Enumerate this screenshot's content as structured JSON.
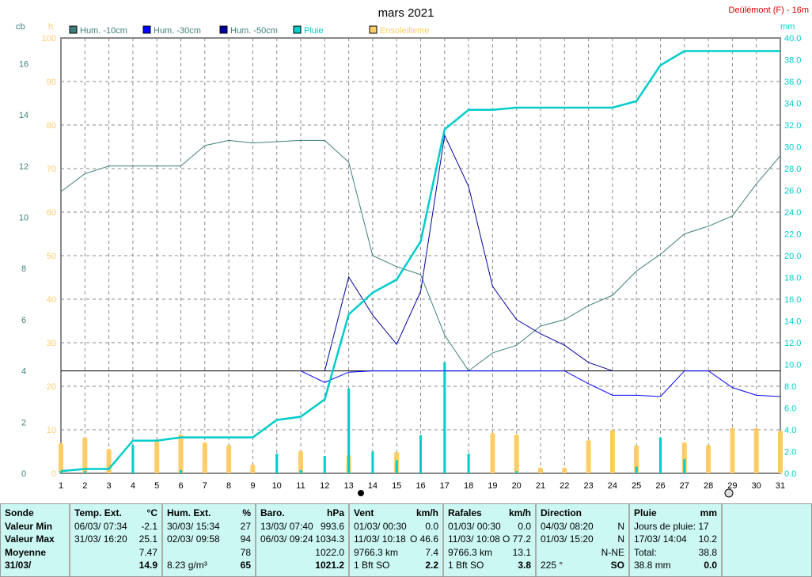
{
  "chart_data": {
    "type": "line",
    "title": "mars 2021",
    "station": "Deülémont (F) - 16m",
    "left_axis_label": "cb",
    "left_axis2_label": "h",
    "right_axis_label": "mm",
    "ylim_cb": [
      0,
      17
    ],
    "ylim_h": [
      0,
      100
    ],
    "ylim_mm": [
      0,
      40
    ],
    "cb_ticks": [
      0,
      2,
      4,
      6,
      8,
      10,
      12,
      14,
      16
    ],
    "h_ticks": [
      0,
      10,
      20,
      30,
      40,
      50,
      60,
      70,
      80,
      90,
      100
    ],
    "mm_ticks": [
      "0.0",
      "2.0",
      "4.0",
      "6.0",
      "8.0",
      "10.0",
      "12.0",
      "14.0",
      "16.0",
      "18.0",
      "20.0",
      "22.0",
      "24.0",
      "26.0",
      "28.0",
      "30.0",
      "32.0",
      "34.0",
      "36.0",
      "38.0",
      "40.0"
    ],
    "x": [
      1,
      2,
      3,
      4,
      5,
      6,
      7,
      8,
      9,
      10,
      11,
      12,
      13,
      14,
      15,
      16,
      17,
      18,
      19,
      20,
      21,
      22,
      23,
      24,
      25,
      26,
      27,
      28,
      29,
      30,
      31
    ],
    "threshold_cb": 4,
    "series": [
      {
        "name": "Hum. -10cm",
        "color": "#3f7f7f",
        "axis": "cb",
        "values": [
          11.0,
          11.7,
          12.0,
          12.0,
          12.0,
          12.0,
          12.8,
          13.0,
          12.9,
          12.95,
          13.0,
          13.0,
          12.15,
          8.5,
          8.07,
          7.76,
          5.4,
          4.0,
          4.7,
          5.0,
          5.75,
          6.0,
          6.55,
          6.95,
          7.9,
          8.55,
          9.35,
          9.65,
          10.05,
          11.3,
          12.4
        ]
      },
      {
        "name": "Hum. -30cm",
        "color": "#0000ff",
        "axis": "cb",
        "values": [
          null,
          null,
          null,
          null,
          null,
          null,
          null,
          null,
          null,
          null,
          4.0,
          3.55,
          3.95,
          4.0,
          4.0,
          4.0,
          4.0,
          4.0,
          4.0,
          4.0,
          4.0,
          4.0,
          3.5,
          3.05,
          3.05,
          3.0,
          4.0,
          4.0,
          3.35,
          3.05,
          3.0
        ]
      },
      {
        "name": "Hum. -50cm",
        "color": "#00009f",
        "axis": "cb",
        "values": [
          null,
          null,
          null,
          null,
          null,
          null,
          null,
          null,
          null,
          null,
          null,
          4.0,
          7.67,
          6.18,
          5.04,
          7.1,
          13.2,
          11.2,
          7.3,
          6.0,
          5.45,
          5.0,
          4.33,
          4.0,
          null,
          null,
          null,
          null,
          null,
          null,
          null
        ]
      },
      {
        "name": "Pluie",
        "color": "#00cccc",
        "axis": "mm",
        "values": [
          0.2,
          0.4,
          0.4,
          3.0,
          3.0,
          3.3,
          3.3,
          3.3,
          3.3,
          4.9,
          5.2,
          6.8,
          14.6,
          16.6,
          17.8,
          21.3,
          31.6,
          33.4,
          33.4,
          33.6,
          33.6,
          33.6,
          33.6,
          33.6,
          34.2,
          37.5,
          38.8,
          38.8,
          38.8,
          38.8,
          38.8
        ],
        "daily": [
          0.2,
          0.2,
          0,
          2.6,
          0,
          0.3,
          0,
          0,
          0,
          1.8,
          0.3,
          1.6,
          7.8,
          2.0,
          1.2,
          3.5,
          10.2,
          1.8,
          0,
          0.2,
          0,
          0,
          0,
          0,
          0.6,
          3.3,
          1.3,
          0,
          0,
          0,
          0
        ]
      },
      {
        "name": "Ensoleilleme",
        "color": "#ffcc66",
        "axis": "h",
        "values": [
          6.9,
          8.2,
          5.6,
          0,
          7.5,
          8.9,
          7.1,
          6.5,
          2.0,
          0,
          5.1,
          0,
          4.2,
          0,
          4.9,
          0,
          0,
          0,
          9.3,
          8.9,
          1.3,
          1.3,
          7.6,
          10.0,
          6.4,
          0,
          7.1,
          6.5,
          10.4,
          10.4,
          9.8
        ]
      }
    ]
  },
  "table": {
    "cols": [
      {
        "h": [
          "Sonde",
          ""
        ],
        "r": [
          [
            "Valeur Min",
            ""
          ],
          [
            "Valeur Max",
            ""
          ],
          [
            "Moyenne",
            ""
          ],
          [
            "31/03/",
            ""
          ]
        ],
        "bold": true
      },
      {
        "h": [
          "Temp. Ext.",
          "°C"
        ],
        "r": [
          [
            "06/03/  07:34",
            "-2.1"
          ],
          [
            "31/03/  16:20",
            "25.1"
          ],
          [
            "",
            "7.47"
          ],
          [
            "",
            "14.9"
          ]
        ]
      },
      {
        "h": [
          "Hum. Ext.",
          "%"
        ],
        "r": [
          [
            "30/03/  15:34",
            "27"
          ],
          [
            "02/03/  09:58",
            "94"
          ],
          [
            "",
            "78"
          ],
          [
            "8.23 g/m³",
            "65"
          ]
        ]
      },
      {
        "h": [
          "Baro.",
          "hPa"
        ],
        "r": [
          [
            "13/03/  07:40",
            "993.6"
          ],
          [
            "06/03/  09:24",
            "1034.3"
          ],
          [
            "",
            "1022.0"
          ],
          [
            "",
            "1021.2"
          ]
        ]
      },
      {
        "h": [
          "Vent",
          "km/h"
        ],
        "r": [
          [
            "01/03/  00:30",
            "0.0"
          ],
          [
            "11/03/  10:18",
            "O 46.6"
          ],
          [
            "9766.3 km",
            "7.4"
          ],
          [
            "1 Bft SO",
            "2.2"
          ]
        ]
      },
      {
        "h": [
          "Rafales",
          "km/h"
        ],
        "r": [
          [
            "01/03/  00:30",
            "0.0"
          ],
          [
            "11/03/  10:08",
            "O 77.2"
          ],
          [
            "9766.3 km",
            "13.1"
          ],
          [
            "1 Bft SO",
            "3.8"
          ]
        ]
      },
      {
        "h": [
          "Direction",
          ""
        ],
        "r": [
          [
            "04/03/  08:20",
            "N"
          ],
          [
            "01/03/  15:20",
            "N"
          ],
          [
            "",
            "N-NE"
          ],
          [
            "225 °",
            "SO"
          ]
        ]
      },
      {
        "h": [
          "Pluie",
          "mm"
        ],
        "r": [
          [
            "Jours de pluie: 17",
            ""
          ],
          [
            "17/03/  14:04",
            "10.2"
          ],
          [
            "Total:",
            "38.8"
          ],
          [
            "38.8 mm",
            "0.0"
          ]
        ]
      }
    ]
  }
}
